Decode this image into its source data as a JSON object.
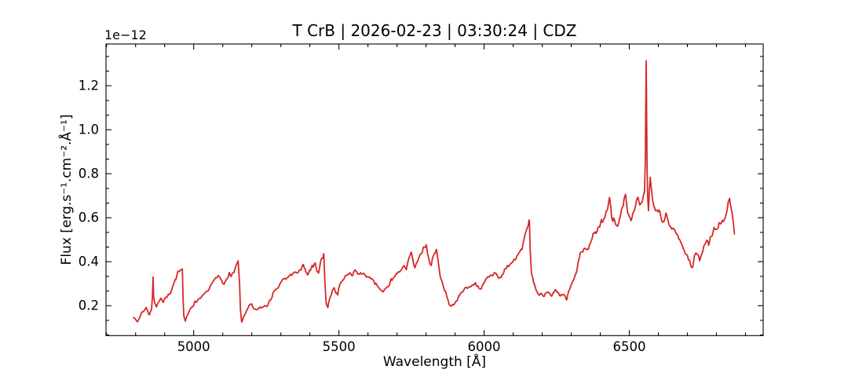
{
  "window": {
    "background": "#ffffff"
  },
  "chart_data": {
    "type": "line",
    "title": "T CrB | 2026-02-23 | 03:30:24 | CDZ",
    "xlabel": "Wavelength [Å]",
    "ylabel": "Flux [erg.s⁻¹.cm⁻².Å⁻¹]",
    "offset_text": "1e−12",
    "flux_unit_scale": "1e-12",
    "line_color": "#d62728",
    "axes_color": "#000000",
    "grid": false,
    "legend": "none",
    "xlim": [
      4698,
      6961
    ],
    "ylim": [
      0.064,
      1.39
    ],
    "x_ticks": [
      {
        "value": 5000,
        "label": "5000"
      },
      {
        "value": 5500,
        "label": "5500"
      },
      {
        "value": 6000,
        "label": "6000"
      },
      {
        "value": 6500,
        "label": "6500"
      }
    ],
    "y_ticks": [
      {
        "value": 0.2,
        "label": "0.2"
      },
      {
        "value": 0.4,
        "label": "0.4"
      },
      {
        "value": 0.6,
        "label": "0.6"
      },
      {
        "value": 0.8,
        "label": "0.8"
      },
      {
        "value": 1.0,
        "label": "1.0"
      },
      {
        "value": 1.2,
        "label": "1.2"
      }
    ],
    "x_minor_step": 100,
    "y_minor_step": 0.06666667,
    "tick_direction": "in",
    "ticks_all_sides": true,
    "series": [
      {
        "name": "T CrB spectrum",
        "emission_lines": [
          {
            "wavelength": 4860,
            "peak_flux": 0.33,
            "id": "H-beta"
          },
          {
            "wavelength": 6558,
            "peak_flux": 1.315,
            "id": "H-alpha"
          }
        ],
        "points": [
          [
            4793,
            0.155
          ],
          [
            4800,
            0.135
          ],
          [
            4806,
            0.128
          ],
          [
            4812,
            0.14
          ],
          [
            4820,
            0.168
          ],
          [
            4828,
            0.178
          ],
          [
            4836,
            0.19
          ],
          [
            4843,
            0.172
          ],
          [
            4848,
            0.162
          ],
          [
            4855,
            0.185
          ],
          [
            4858,
            0.24
          ],
          [
            4860,
            0.327
          ],
          [
            4862,
            0.24
          ],
          [
            4866,
            0.205
          ],
          [
            4872,
            0.2
          ],
          [
            4880,
            0.225
          ],
          [
            4888,
            0.235
          ],
          [
            4895,
            0.21
          ],
          [
            4903,
            0.24
          ],
          [
            4912,
            0.25
          ],
          [
            4920,
            0.26
          ],
          [
            4930,
            0.29
          ],
          [
            4938,
            0.32
          ],
          [
            4945,
            0.345
          ],
          [
            4952,
            0.35
          ],
          [
            4958,
            0.355
          ],
          [
            4961,
            0.36
          ],
          [
            4963,
            0.25
          ],
          [
            4966,
            0.155
          ],
          [
            4971,
            0.128
          ],
          [
            4977,
            0.15
          ],
          [
            4985,
            0.175
          ],
          [
            4995,
            0.2
          ],
          [
            5005,
            0.215
          ],
          [
            5015,
            0.225
          ],
          [
            5025,
            0.232
          ],
          [
            5035,
            0.25
          ],
          [
            5048,
            0.27
          ],
          [
            5060,
            0.29
          ],
          [
            5070,
            0.31
          ],
          [
            5080,
            0.33
          ],
          [
            5090,
            0.33
          ],
          [
            5098,
            0.31
          ],
          [
            5105,
            0.3
          ],
          [
            5113,
            0.33
          ],
          [
            5122,
            0.345
          ],
          [
            5130,
            0.34
          ],
          [
            5140,
            0.355
          ],
          [
            5147,
            0.38
          ],
          [
            5153,
            0.4
          ],
          [
            5158,
            0.3
          ],
          [
            5161,
            0.18
          ],
          [
            5165,
            0.128
          ],
          [
            5170,
            0.14
          ],
          [
            5180,
            0.17
          ],
          [
            5190,
            0.2
          ],
          [
            5200,
            0.205
          ],
          [
            5208,
            0.185
          ],
          [
            5215,
            0.176
          ],
          [
            5222,
            0.185
          ],
          [
            5230,
            0.19
          ],
          [
            5240,
            0.195
          ],
          [
            5252,
            0.2
          ],
          [
            5262,
            0.22
          ],
          [
            5272,
            0.25
          ],
          [
            5283,
            0.27
          ],
          [
            5295,
            0.29
          ],
          [
            5308,
            0.32
          ],
          [
            5320,
            0.325
          ],
          [
            5330,
            0.33
          ],
          [
            5340,
            0.35
          ],
          [
            5350,
            0.345
          ],
          [
            5360,
            0.35
          ],
          [
            5370,
            0.36
          ],
          [
            5379,
            0.385
          ],
          [
            5386,
            0.36
          ],
          [
            5392,
            0.34
          ],
          [
            5400,
            0.36
          ],
          [
            5410,
            0.385
          ],
          [
            5419,
            0.39
          ],
          [
            5425,
            0.36
          ],
          [
            5430,
            0.35
          ],
          [
            5437,
            0.4
          ],
          [
            5445,
            0.425
          ],
          [
            5448,
            0.43
          ],
          [
            5452,
            0.3
          ],
          [
            5456,
            0.215
          ],
          [
            5462,
            0.195
          ],
          [
            5470,
            0.24
          ],
          [
            5478,
            0.27
          ],
          [
            5484,
            0.283
          ],
          [
            5490,
            0.26
          ],
          [
            5496,
            0.255
          ],
          [
            5505,
            0.3
          ],
          [
            5513,
            0.32
          ],
          [
            5522,
            0.33
          ],
          [
            5530,
            0.345
          ],
          [
            5540,
            0.35
          ],
          [
            5548,
            0.34
          ],
          [
            5556,
            0.355
          ],
          [
            5565,
            0.34
          ],
          [
            5575,
            0.35
          ],
          [
            5585,
            0.345
          ],
          [
            5595,
            0.33
          ],
          [
            5605,
            0.33
          ],
          [
            5615,
            0.32
          ],
          [
            5625,
            0.3
          ],
          [
            5635,
            0.283
          ],
          [
            5645,
            0.27
          ],
          [
            5652,
            0.266
          ],
          [
            5660,
            0.27
          ],
          [
            5670,
            0.29
          ],
          [
            5680,
            0.32
          ],
          [
            5690,
            0.33
          ],
          [
            5700,
            0.345
          ],
          [
            5710,
            0.36
          ],
          [
            5718,
            0.37
          ],
          [
            5725,
            0.375
          ],
          [
            5732,
            0.36
          ],
          [
            5740,
            0.41
          ],
          [
            5749,
            0.435
          ],
          [
            5755,
            0.4
          ],
          [
            5762,
            0.375
          ],
          [
            5770,
            0.4
          ],
          [
            5780,
            0.43
          ],
          [
            5790,
            0.46
          ],
          [
            5800,
            0.48
          ],
          [
            5806,
            0.44
          ],
          [
            5812,
            0.4
          ],
          [
            5818,
            0.38
          ],
          [
            5824,
            0.42
          ],
          [
            5830,
            0.44
          ],
          [
            5836,
            0.45
          ],
          [
            5842,
            0.4
          ],
          [
            5850,
            0.33
          ],
          [
            5858,
            0.3
          ],
          [
            5865,
            0.27
          ],
          [
            5872,
            0.235
          ],
          [
            5880,
            0.21
          ],
          [
            5886,
            0.2
          ],
          [
            5893,
            0.21
          ],
          [
            5900,
            0.215
          ],
          [
            5908,
            0.23
          ],
          [
            5916,
            0.245
          ],
          [
            5924,
            0.255
          ],
          [
            5932,
            0.27
          ],
          [
            5940,
            0.28
          ],
          [
            5950,
            0.285
          ],
          [
            5960,
            0.295
          ],
          [
            5970,
            0.3
          ],
          [
            5980,
            0.29
          ],
          [
            5991,
            0.278
          ],
          [
            6000,
            0.3
          ],
          [
            6010,
            0.32
          ],
          [
            6020,
            0.33
          ],
          [
            6030,
            0.34
          ],
          [
            6040,
            0.345
          ],
          [
            6050,
            0.32
          ],
          [
            6060,
            0.33
          ],
          [
            6070,
            0.36
          ],
          [
            6081,
            0.375
          ],
          [
            6090,
            0.39
          ],
          [
            6100,
            0.4
          ],
          [
            6110,
            0.42
          ],
          [
            6120,
            0.44
          ],
          [
            6130,
            0.46
          ],
          [
            6140,
            0.52
          ],
          [
            6148,
            0.555
          ],
          [
            6153,
            0.57
          ],
          [
            6156,
            0.58
          ],
          [
            6159,
            0.45
          ],
          [
            6163,
            0.35
          ],
          [
            6168,
            0.33
          ],
          [
            6172,
            0.3
          ],
          [
            6178,
            0.27
          ],
          [
            6185,
            0.26
          ],
          [
            6192,
            0.25
          ],
          [
            6200,
            0.255
          ],
          [
            6208,
            0.245
          ],
          [
            6215,
            0.26
          ],
          [
            6222,
            0.255
          ],
          [
            6230,
            0.245
          ],
          [
            6238,
            0.26
          ],
          [
            6245,
            0.27
          ],
          [
            6252,
            0.26
          ],
          [
            6258,
            0.25
          ],
          [
            6265,
            0.245
          ],
          [
            6272,
            0.25
          ],
          [
            6278,
            0.245
          ],
          [
            6285,
            0.232
          ],
          [
            6292,
            0.26
          ],
          [
            6300,
            0.3
          ],
          [
            6310,
            0.33
          ],
          [
            6320,
            0.36
          ],
          [
            6330,
            0.43
          ],
          [
            6340,
            0.44
          ],
          [
            6350,
            0.46
          ],
          [
            6360,
            0.47
          ],
          [
            6368,
            0.5
          ],
          [
            6375,
            0.52
          ],
          [
            6382,
            0.53
          ],
          [
            6390,
            0.54
          ],
          [
            6398,
            0.56
          ],
          [
            6405,
            0.58
          ],
          [
            6412,
            0.6
          ],
          [
            6420,
            0.63
          ],
          [
            6428,
            0.66
          ],
          [
            6432,
            0.685
          ],
          [
            6438,
            0.62
          ],
          [
            6445,
            0.59
          ],
          [
            6452,
            0.57
          ],
          [
            6459,
            0.555
          ],
          [
            6466,
            0.6
          ],
          [
            6473,
            0.64
          ],
          [
            6480,
            0.67
          ],
          [
            6487,
            0.695
          ],
          [
            6494,
            0.62
          ],
          [
            6500,
            0.6
          ],
          [
            6506,
            0.59
          ],
          [
            6512,
            0.62
          ],
          [
            6518,
            0.65
          ],
          [
            6524,
            0.68
          ],
          [
            6530,
            0.7
          ],
          [
            6536,
            0.66
          ],
          [
            6542,
            0.68
          ],
          [
            6548,
            0.71
          ],
          [
            6552,
            0.72
          ],
          [
            6555,
            0.85
          ],
          [
            6557,
            1.15
          ],
          [
            6558,
            1.315
          ],
          [
            6559.5,
            1.1
          ],
          [
            6561,
            0.85
          ],
          [
            6563,
            0.7
          ],
          [
            6566,
            0.63
          ],
          [
            6569,
            0.72
          ],
          [
            6572,
            0.78
          ],
          [
            6576,
            0.72
          ],
          [
            6580,
            0.68
          ],
          [
            6585,
            0.64
          ],
          [
            6590,
            0.62
          ],
          [
            6596,
            0.64
          ],
          [
            6602,
            0.63
          ],
          [
            6608,
            0.6
          ],
          [
            6614,
            0.58
          ],
          [
            6620,
            0.59
          ],
          [
            6626,
            0.62
          ],
          [
            6632,
            0.58
          ],
          [
            6638,
            0.56
          ],
          [
            6645,
            0.56
          ],
          [
            6652,
            0.55
          ],
          [
            6658,
            0.54
          ],
          [
            6665,
            0.52
          ],
          [
            6672,
            0.5
          ],
          [
            6680,
            0.48
          ],
          [
            6688,
            0.46
          ],
          [
            6695,
            0.44
          ],
          [
            6702,
            0.42
          ],
          [
            6708,
            0.4
          ],
          [
            6713,
            0.38
          ],
          [
            6718,
            0.375
          ],
          [
            6724,
            0.42
          ],
          [
            6730,
            0.44
          ],
          [
            6736,
            0.43
          ],
          [
            6742,
            0.41
          ],
          [
            6748,
            0.44
          ],
          [
            6754,
            0.46
          ],
          [
            6760,
            0.47
          ],
          [
            6766,
            0.5
          ],
          [
            6772,
            0.48
          ],
          [
            6778,
            0.5
          ],
          [
            6785,
            0.51
          ],
          [
            6792,
            0.55
          ],
          [
            6800,
            0.54
          ],
          [
            6808,
            0.56
          ],
          [
            6815,
            0.57
          ],
          [
            6822,
            0.58
          ],
          [
            6830,
            0.6
          ],
          [
            6836,
            0.63
          ],
          [
            6841,
            0.67
          ],
          [
            6845,
            0.695
          ],
          [
            6849,
            0.66
          ],
          [
            6853,
            0.62
          ],
          [
            6857,
            0.58
          ],
          [
            6860,
            0.545
          ],
          [
            6862,
            0.52
          ]
        ]
      }
    ],
    "noise": {
      "seed": 7,
      "base": 0.007,
      "scale": 0.03,
      "max": 0.026,
      "sample_step_angstrom": 3
    }
  }
}
